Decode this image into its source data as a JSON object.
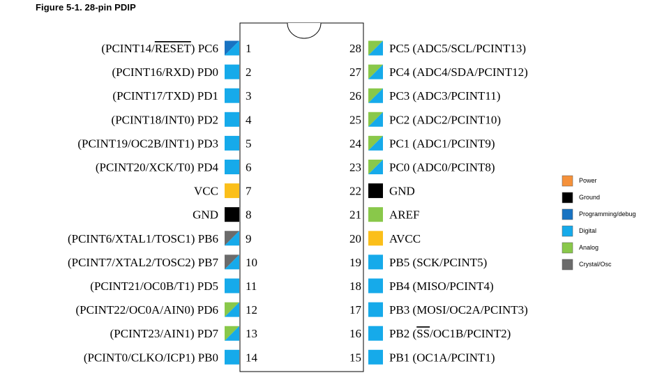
{
  "figure_title": "Figure 5-1.  28-pin PDIP",
  "colors": {
    "power": "#fbbf1a",
    "ground": "#000000",
    "programming": "#1873c2",
    "digital": "#16aaea",
    "analog": "#89c84a",
    "crystal": "#6b6b6b",
    "legend_power": "#f5913a"
  },
  "legend": [
    {
      "key": "power",
      "label": "Power"
    },
    {
      "key": "ground",
      "label": "Ground"
    },
    {
      "key": "programming",
      "label": "Programming/debug"
    },
    {
      "key": "digital",
      "label": "Digital"
    },
    {
      "key": "analog",
      "label": "Analog"
    },
    {
      "key": "crystal",
      "label": "Crystal/Osc"
    }
  ],
  "left_pins": [
    {
      "num": "1",
      "pre": "(PCINT14/",
      "over": "RESET",
      "post": ") PC6",
      "fill": [
        "programming",
        "digital"
      ]
    },
    {
      "num": "2",
      "label": "(PCINT16/RXD) PD0",
      "fill": [
        "digital"
      ]
    },
    {
      "num": "3",
      "label": "(PCINT17/TXD) PD1",
      "fill": [
        "digital"
      ]
    },
    {
      "num": "4",
      "label": "(PCINT18/INT0) PD2",
      "fill": [
        "digital"
      ]
    },
    {
      "num": "5",
      "label": "(PCINT19/OC2B/INT1) PD3",
      "fill": [
        "digital"
      ]
    },
    {
      "num": "6",
      "label": "(PCINT20/XCK/T0) PD4",
      "fill": [
        "digital"
      ]
    },
    {
      "num": "7",
      "label": "VCC",
      "fill": [
        "power"
      ]
    },
    {
      "num": "8",
      "label": "GND",
      "fill": [
        "ground"
      ]
    },
    {
      "num": "9",
      "label": "(PCINT6/XTAL1/TOSC1) PB6",
      "fill": [
        "crystal",
        "digital"
      ]
    },
    {
      "num": "10",
      "label": "(PCINT7/XTAL2/TOSC2) PB7",
      "fill": [
        "crystal",
        "digital"
      ]
    },
    {
      "num": "11",
      "label": "(PCINT21/OC0B/T1) PD5",
      "fill": [
        "digital"
      ]
    },
    {
      "num": "12",
      "label": "(PCINT22/OC0A/AIN0) PD6",
      "fill": [
        "analog",
        "digital"
      ]
    },
    {
      "num": "13",
      "label": "(PCINT23/AIN1) PD7",
      "fill": [
        "analog",
        "digital"
      ]
    },
    {
      "num": "14",
      "label": "(PCINT0/CLKO/ICP1) PB0",
      "fill": [
        "digital"
      ]
    }
  ],
  "right_pins": [
    {
      "num": "28",
      "label": "PC5 (ADC5/SCL/PCINT13)",
      "fill": [
        "analog",
        "digital"
      ]
    },
    {
      "num": "27",
      "label": "PC4 (ADC4/SDA/PCINT12)",
      "fill": [
        "analog",
        "digital"
      ]
    },
    {
      "num": "26",
      "label": "PC3 (ADC3/PCINT11)",
      "fill": [
        "analog",
        "digital"
      ]
    },
    {
      "num": "25",
      "label": "PC2 (ADC2/PCINT10)",
      "fill": [
        "analog",
        "digital"
      ]
    },
    {
      "num": "24",
      "label": "PC1 (ADC1/PCINT9)",
      "fill": [
        "analog",
        "digital"
      ]
    },
    {
      "num": "23",
      "label": "PC0 (ADC0/PCINT8)",
      "fill": [
        "analog",
        "digital"
      ]
    },
    {
      "num": "22",
      "label": "GND",
      "fill": [
        "ground"
      ]
    },
    {
      "num": "21",
      "label": "AREF",
      "fill": [
        "analog"
      ]
    },
    {
      "num": "20",
      "label": "AVCC",
      "fill": [
        "power"
      ]
    },
    {
      "num": "19",
      "label": "PB5 (SCK/PCINT5)",
      "fill": [
        "digital"
      ]
    },
    {
      "num": "18",
      "label": "PB4 (MISO/PCINT4)",
      "fill": [
        "digital"
      ]
    },
    {
      "num": "17",
      "pre": "PB3 (MOSI/OC2A/PCINT3)",
      "fill": [
        "digital"
      ]
    },
    {
      "num": "16",
      "pre": "PB2 (",
      "over": "SS",
      "post": "/OC1B/PCINT2)",
      "fill": [
        "digital"
      ]
    },
    {
      "num": "15",
      "label": "PB1 (OC1A/PCINT1)",
      "fill": [
        "digital"
      ]
    }
  ]
}
